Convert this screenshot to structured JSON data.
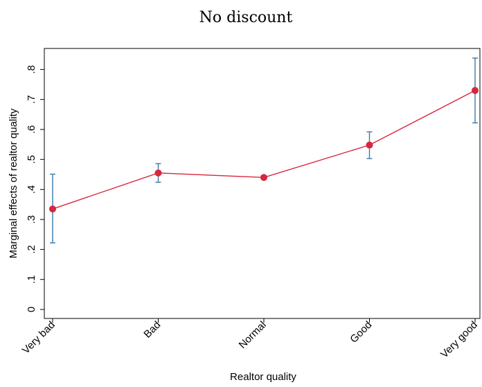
{
  "chart_data": {
    "type": "line",
    "title": "No discount",
    "xlabel": "Realtor quality",
    "ylabel": "Marginal effects of realtor quality",
    "categories": [
      "Very bad",
      "Bad",
      "Normal",
      "Good",
      "Very good"
    ],
    "series": [
      {
        "values": [
          0.335,
          0.455,
          0.44,
          0.548,
          0.73
        ],
        "ci_low": [
          0.222,
          0.424,
          0.435,
          0.503,
          0.622
        ],
        "ci_high": [
          0.451,
          0.486,
          0.446,
          0.592,
          0.838
        ],
        "color": "#d7263d",
        "error_bar_color": "#3b78a8"
      }
    ],
    "yticks": [
      0,
      0.1,
      0.2,
      0.3,
      0.4,
      0.5,
      0.6,
      0.7,
      0.8
    ],
    "ytick_labels": [
      "0",
      ".1",
      ".2",
      ".3",
      ".4",
      ".5",
      ".6",
      ".7",
      ".8"
    ],
    "ylim": [
      -0.03,
      0.87
    ],
    "grid": false,
    "legend": "none"
  }
}
